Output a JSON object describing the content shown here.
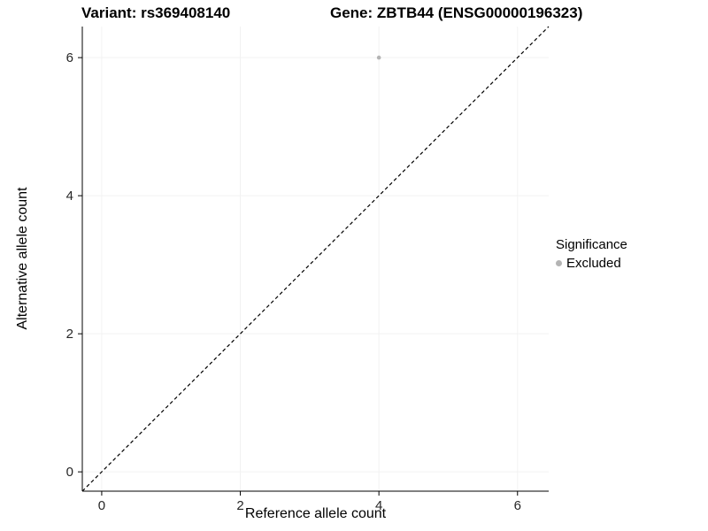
{
  "chart_data": {
    "type": "scatter",
    "title_left": "Variant: rs369408140",
    "title_right": "Gene: ZBTB44 (ENSG00000196323)",
    "xlabel": "Reference allele count",
    "ylabel": "Alternative allele count",
    "xlim": [
      -0.28,
      6.45
    ],
    "ylim": [
      -0.28,
      6.45
    ],
    "xticks": [
      0,
      2,
      4,
      6
    ],
    "yticks": [
      0,
      2,
      4,
      6
    ],
    "grid": "faint-major",
    "grid_color": "#f2f2f2",
    "axis_line_color": "#000000",
    "tick_label_color": "#262626",
    "identity_line": {
      "style": "dashed",
      "color": "#000000"
    },
    "series": [
      {
        "name": "Excluded",
        "color": "#b4b4b4",
        "points": [
          {
            "x": 4,
            "y": 6
          }
        ]
      }
    ],
    "legend": {
      "position": "right",
      "title": "Significance",
      "entries": [
        {
          "label": "Excluded",
          "color": "#b4b4b4"
        }
      ]
    }
  }
}
